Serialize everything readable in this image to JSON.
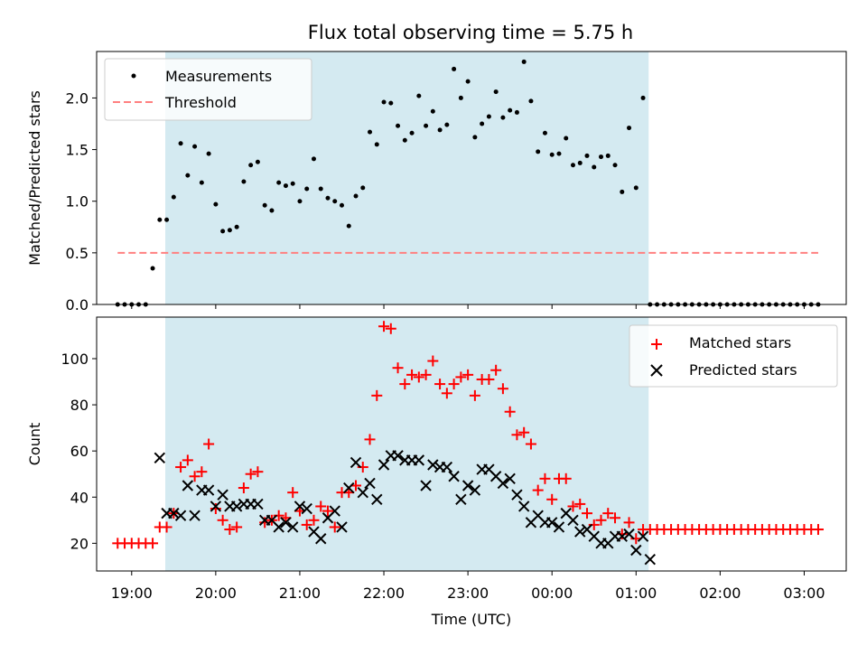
{
  "colors": {
    "shade": "#d4eaf1",
    "threshold": "#ff8080",
    "matched": "#ff0000",
    "predicted": "#000000",
    "measurement": "#000000"
  },
  "chart_data": [
    {
      "type": "scatter",
      "title": "Flux total observing time = 5.75 h",
      "ylabel": "Matched/Predicted stars",
      "xlabel": "",
      "xlim": [
        "18:35",
        "03:30"
      ],
      "ylim": [
        0,
        2.45
      ],
      "yticks": [
        "0.0",
        "0.5",
        "1.0",
        "1.5",
        "2.0"
      ],
      "shaded_span": [
        "19:24",
        "01:09"
      ],
      "legend": {
        "placement": "upper-left",
        "entries": [
          "Measurements",
          "Threshold"
        ]
      },
      "series": [
        {
          "name": "Measurements",
          "kind": "points",
          "x": [
            "18:50",
            "18:55",
            "19:00",
            "19:05",
            "19:10",
            "19:15",
            "19:20",
            "19:25",
            "19:30",
            "19:35",
            "19:40",
            "19:45",
            "19:50",
            "19:55",
            "20:00",
            "20:05",
            "20:10",
            "20:15",
            "20:20",
            "20:25",
            "20:30",
            "20:35",
            "20:40",
            "20:45",
            "20:50",
            "20:55",
            "21:00",
            "21:05",
            "21:10",
            "21:15",
            "21:20",
            "21:25",
            "21:30",
            "21:35",
            "21:40",
            "21:45",
            "21:50",
            "21:55",
            "22:00",
            "22:05",
            "22:10",
            "22:15",
            "22:20",
            "22:25",
            "22:30",
            "22:35",
            "22:40",
            "22:45",
            "22:50",
            "22:55",
            "23:00",
            "23:05",
            "23:10",
            "23:15",
            "23:20",
            "23:25",
            "23:30",
            "23:35",
            "23:40",
            "23:45",
            "23:50",
            "23:55",
            "00:00",
            "00:05",
            "00:10",
            "00:15",
            "00:20",
            "00:25",
            "00:30",
            "00:35",
            "00:40",
            "00:45",
            "00:50",
            "00:55",
            "01:00",
            "01:05",
            "01:10",
            "01:15",
            "01:20",
            "01:25",
            "01:30",
            "01:35",
            "01:40",
            "01:45",
            "01:50",
            "01:55",
            "02:00",
            "02:05",
            "02:10",
            "02:15",
            "02:20",
            "02:25",
            "02:30",
            "02:35",
            "02:40",
            "02:45",
            "02:50",
            "02:55",
            "03:00",
            "03:05",
            "03:10"
          ],
          "y": [
            0,
            0,
            0,
            0,
            0,
            0.35,
            0.82,
            0.82,
            1.04,
            1.56,
            1.25,
            1.53,
            1.18,
            1.46,
            0.97,
            0.71,
            0.72,
            0.75,
            1.19,
            1.35,
            1.38,
            0.96,
            0.91,
            1.18,
            1.15,
            1.17,
            1.0,
            1.12,
            1.41,
            1.12,
            1.03,
            1.0,
            0.96,
            0.76,
            1.05,
            1.13,
            1.67,
            1.55,
            1.96,
            1.95,
            1.73,
            1.59,
            1.66,
            2.02,
            1.73,
            1.87,
            1.69,
            1.74,
            2.28,
            2.0,
            2.16,
            1.62,
            1.75,
            1.82,
            2.06,
            1.81,
            1.88,
            1.86,
            2.35,
            1.97,
            1.48,
            1.66,
            1.45,
            1.46,
            1.61,
            1.35,
            1.37,
            1.44,
            1.33,
            1.43,
            1.44,
            1.35,
            1.09,
            1.71,
            1.13,
            2.0,
            0,
            0,
            0,
            0,
            0,
            0,
            0,
            0,
            0,
            0,
            0,
            0,
            0,
            0,
            0,
            0,
            0,
            0,
            0,
            0,
            0,
            0,
            0,
            0,
            0
          ]
        },
        {
          "name": "Threshold",
          "kind": "dashed-line",
          "x": [
            "18:50",
            "03:10"
          ],
          "y": [
            0.5,
            0.5
          ]
        }
      ]
    },
    {
      "type": "scatter",
      "title": "",
      "ylabel": "Count",
      "xlabel": "Time (UTC)",
      "xlim": [
        "18:35",
        "03:30"
      ],
      "ylim": [
        8,
        118
      ],
      "yticks": [
        "20",
        "40",
        "60",
        "80",
        "100"
      ],
      "xticks": [
        "19:00",
        "20:00",
        "21:00",
        "22:00",
        "23:00",
        "00:00",
        "01:00",
        "02:00",
        "03:00"
      ],
      "shaded_span": [
        "19:24",
        "01:09"
      ],
      "legend": {
        "placement": "upper-right",
        "entries": [
          "Matched stars",
          "Predicted stars"
        ]
      },
      "series": [
        {
          "name": "Matched stars",
          "kind": "plus",
          "x": [
            "18:50",
            "18:55",
            "19:00",
            "19:05",
            "19:10",
            "19:15",
            "19:20",
            "19:25",
            "19:30",
            "19:35",
            "19:40",
            "19:45",
            "19:50",
            "19:55",
            "20:00",
            "20:05",
            "20:10",
            "20:15",
            "20:20",
            "20:25",
            "20:30",
            "20:35",
            "20:40",
            "20:45",
            "20:50",
            "20:55",
            "21:00",
            "21:05",
            "21:10",
            "21:15",
            "21:20",
            "21:25",
            "21:30",
            "21:35",
            "21:40",
            "21:45",
            "21:50",
            "21:55",
            "22:00",
            "22:05",
            "22:10",
            "22:15",
            "22:20",
            "22:25",
            "22:30",
            "22:35",
            "22:40",
            "22:45",
            "22:50",
            "22:55",
            "23:00",
            "23:05",
            "23:10",
            "23:15",
            "23:20",
            "23:25",
            "23:30",
            "23:35",
            "23:40",
            "23:45",
            "23:50",
            "23:55",
            "00:00",
            "00:05",
            "00:10",
            "00:15",
            "00:20",
            "00:25",
            "00:30",
            "00:35",
            "00:40",
            "00:45",
            "00:50",
            "00:55",
            "01:00",
            "01:05",
            "01:10",
            "01:15",
            "01:20",
            "01:25",
            "01:30",
            "01:35",
            "01:40",
            "01:45",
            "01:50",
            "01:55",
            "02:00",
            "02:05",
            "02:10",
            "02:15",
            "02:20",
            "02:25",
            "02:30",
            "02:35",
            "02:40",
            "02:45",
            "02:50",
            "02:55",
            "03:00",
            "03:05",
            "03:10"
          ],
          "y": [
            20,
            20,
            20,
            20,
            20,
            20,
            27,
            27,
            33,
            53,
            56,
            49,
            51,
            63,
            35,
            30,
            26,
            27,
            44,
            50,
            51,
            29,
            30,
            32,
            31,
            42,
            34,
            28,
            30,
            36,
            34,
            27,
            42,
            42,
            45,
            53,
            65,
            84,
            114,
            113,
            96,
            89,
            93,
            92,
            93,
            99,
            89,
            85,
            89,
            92,
            93,
            84,
            91,
            91,
            95,
            87,
            77,
            67,
            68,
            63,
            43,
            48,
            39,
            48,
            48,
            36,
            37,
            33,
            28,
            30,
            33,
            31,
            24,
            29,
            22,
            26,
            26,
            26,
            26,
            26,
            26,
            26,
            26,
            26,
            26,
            26,
            26,
            26,
            26,
            26,
            26,
            26,
            26,
            26,
            26,
            26,
            26,
            26,
            26,
            26,
            26
          ]
        },
        {
          "name": "Predicted stars",
          "kind": "x",
          "x": [
            "19:20",
            "19:25",
            "19:30",
            "19:35",
            "19:40",
            "19:45",
            "19:50",
            "19:55",
            "20:00",
            "20:05",
            "20:10",
            "20:15",
            "20:20",
            "20:25",
            "20:30",
            "20:35",
            "20:40",
            "20:45",
            "20:50",
            "20:55",
            "21:00",
            "21:05",
            "21:10",
            "21:15",
            "21:20",
            "21:25",
            "21:30",
            "21:35",
            "21:40",
            "21:45",
            "21:50",
            "21:55",
            "22:00",
            "22:05",
            "22:10",
            "22:15",
            "22:20",
            "22:25",
            "22:30",
            "22:35",
            "22:40",
            "22:45",
            "22:50",
            "22:55",
            "23:00",
            "23:05",
            "23:10",
            "23:15",
            "23:20",
            "23:25",
            "23:30",
            "23:35",
            "23:40",
            "23:45",
            "23:50",
            "23:55",
            "00:00",
            "00:05",
            "00:10",
            "00:15",
            "00:20",
            "00:25",
            "00:30",
            "00:35",
            "00:40",
            "00:45",
            "00:50",
            "00:55",
            "01:00",
            "01:05",
            "01:10"
          ],
          "y": [
            57,
            33,
            33,
            32,
            45,
            32,
            43,
            43,
            36,
            41,
            36,
            36,
            37,
            37,
            37,
            30,
            30,
            27,
            29,
            27,
            36,
            35,
            25,
            22,
            31,
            34,
            27,
            44,
            55,
            42,
            46,
            39,
            54,
            58,
            58,
            56,
            56,
            56,
            45,
            54,
            53,
            53,
            49,
            39,
            45,
            43,
            52,
            52,
            49,
            46,
            48,
            41,
            36,
            29,
            32,
            29,
            29,
            27,
            33,
            30,
            25,
            26,
            23,
            20,
            20,
            23,
            23,
            24,
            17,
            23,
            13
          ]
        }
      ]
    }
  ]
}
